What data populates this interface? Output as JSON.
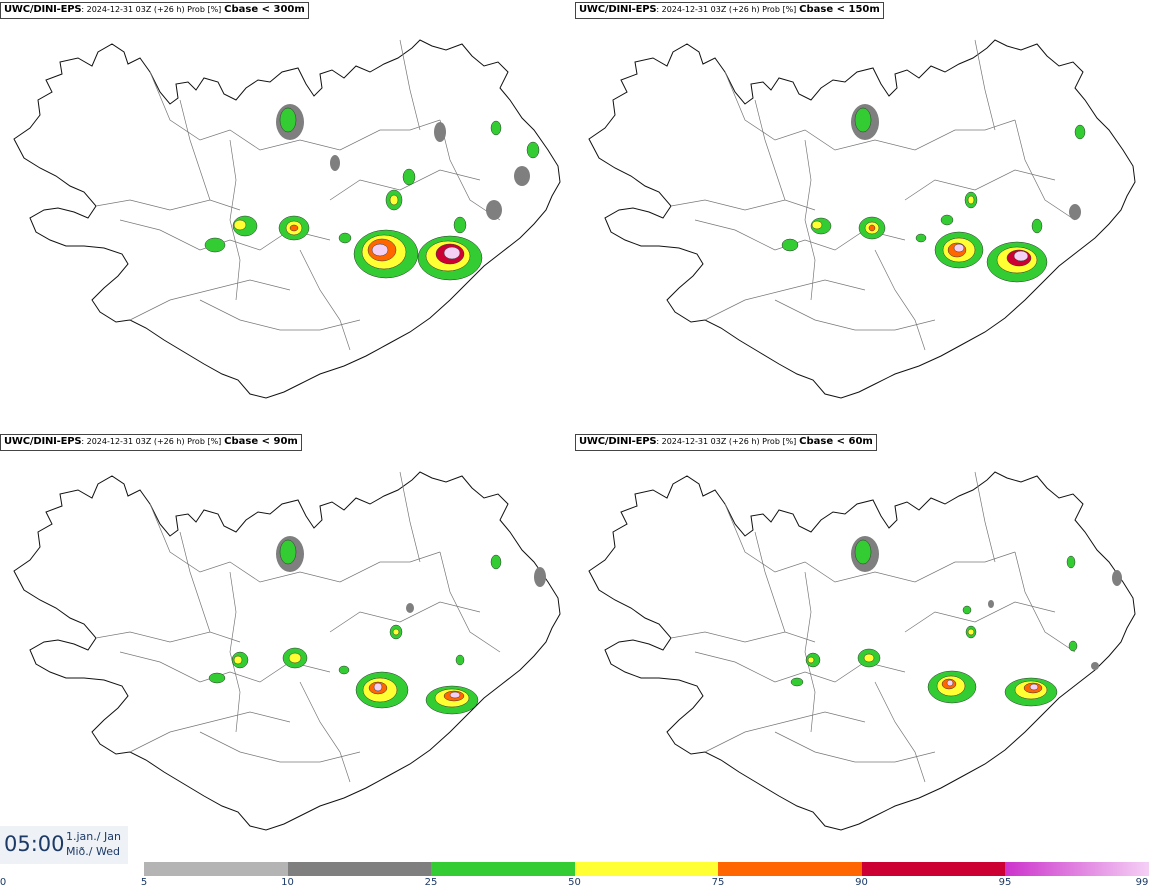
{
  "panels": [
    {
      "model": "UWC/DINI-EPS",
      "run": ": 2024-12-31 03Z (+26 h) Prob [%]",
      "param": "Cbase < 300m"
    },
    {
      "model": "UWC/DINI-EPS",
      "run": ": 2024-12-31 03Z (+26 h) Prob [%]",
      "param": "Cbase < 150m"
    },
    {
      "model": "UWC/DINI-EPS",
      "run": ": 2024-12-31 03Z (+26 h) Prob [%]",
      "param": "Cbase < 90m"
    },
    {
      "model": "UWC/DINI-EPS",
      "run": ": 2024-12-31 03Z (+26 h) Prob [%]",
      "param": "Cbase < 60m"
    }
  ],
  "time": {
    "hour": "05:00",
    "date_line1": "1.jan./ Jan",
    "date_line2": "Mið./ Wed"
  },
  "colorbar": {
    "labels": [
      "0",
      "5",
      "10",
      "25",
      "50",
      "75",
      "90",
      "95",
      "99"
    ],
    "colors": [
      "#ffffff",
      "#b4b4b4",
      "#7f7f7f",
      "#33cc33",
      "#ffff33",
      "#ff6600",
      "#cc0033",
      "#cc33cc",
      "#f5d0f5"
    ]
  }
}
